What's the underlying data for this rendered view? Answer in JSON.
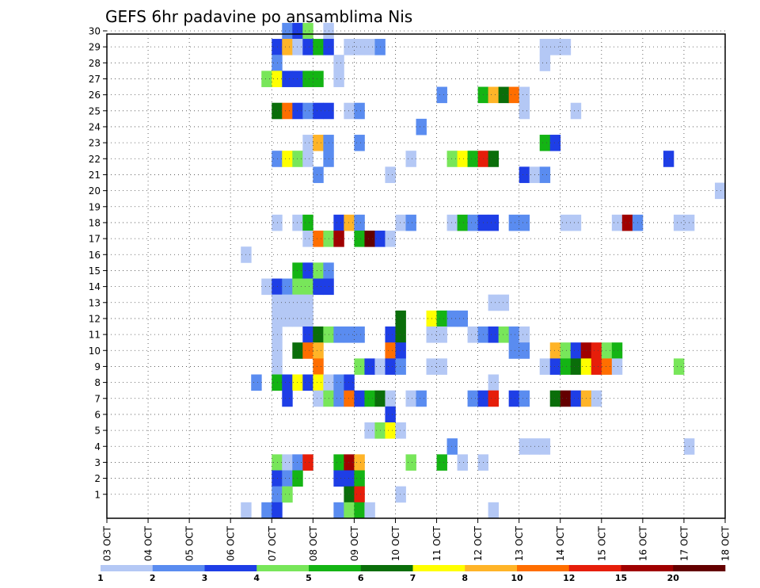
{
  "chart_data": {
    "type": "heatmap",
    "title": "GEFS 6hr padavine po ansamblima Nis",
    "x_ticks": [
      "03 OCT",
      "04 OCT",
      "05 OCT",
      "06 OCT",
      "07 OCT",
      "08 OCT",
      "09 OCT",
      "10 OCT",
      "11 OCT",
      "12 OCT",
      "13 OCT",
      "14 OCT",
      "15 OCT",
      "16 OCT",
      "17 OCT",
      "18 OCT"
    ],
    "x_range_days": [
      0,
      15
    ],
    "time_step_hours": 6,
    "y_members": [
      1,
      2,
      3,
      4,
      5,
      6,
      7,
      8,
      9,
      10,
      11,
      12,
      13,
      14,
      15,
      16,
      17,
      18,
      19,
      20,
      21,
      22,
      23,
      24,
      25,
      26,
      27,
      28,
      29,
      30
    ],
    "y_range": [
      0,
      30
    ],
    "grid": true,
    "legend": {
      "placement": "bottom",
      "labels": [
        "1",
        "2",
        "3",
        "4",
        "5",
        "6",
        "7",
        "8",
        "10",
        "12",
        "15",
        "20"
      ],
      "colors": [
        "#b4c8f5",
        "#5a8cf0",
        "#1e3ee6",
        "#78e65a",
        "#14b414",
        "#0a6e0a",
        "#ffff00",
        "#ffb428",
        "#ff6e00",
        "#e61e0a",
        "#a00000",
        "#640000"
      ]
    },
    "cells": [
      {
        "m": 30,
        "t": [
          [
            17,
            2
          ],
          [
            18,
            3
          ],
          [
            19,
            4
          ],
          [
            21,
            1
          ]
        ]
      },
      {
        "m": 29,
        "t": [
          [
            16,
            3
          ],
          [
            17,
            8
          ],
          [
            18,
            1
          ],
          [
            19,
            3
          ],
          [
            20,
            5
          ],
          [
            21,
            3
          ],
          [
            23,
            1
          ],
          [
            24,
            1
          ],
          [
            25,
            1
          ],
          [
            26,
            2
          ],
          [
            42,
            1
          ],
          [
            43,
            1
          ],
          [
            44,
            1
          ]
        ]
      },
      {
        "m": 28,
        "t": [
          [
            16,
            2
          ],
          [
            22,
            1
          ],
          [
            42,
            1
          ]
        ]
      },
      {
        "m": 27,
        "t": [
          [
            15,
            4
          ],
          [
            16,
            7
          ],
          [
            17,
            3
          ],
          [
            18,
            3
          ],
          [
            19,
            5
          ],
          [
            20,
            5
          ],
          [
            22,
            1
          ]
        ]
      },
      {
        "m": 26,
        "t": [
          [
            32,
            2
          ],
          [
            36,
            5
          ],
          [
            37,
            8
          ],
          [
            38,
            6
          ],
          [
            39,
            9
          ],
          [
            40,
            1
          ]
        ]
      },
      {
        "m": 25,
        "t": [
          [
            16,
            6
          ],
          [
            17,
            9
          ],
          [
            18,
            3
          ],
          [
            19,
            2
          ],
          [
            20,
            3
          ],
          [
            21,
            3
          ],
          [
            23,
            1
          ],
          [
            24,
            2
          ],
          [
            40,
            1
          ],
          [
            45,
            1
          ]
        ]
      },
      {
        "m": 24,
        "t": [
          [
            30,
            2
          ]
        ]
      },
      {
        "m": 23,
        "t": [
          [
            19,
            1
          ],
          [
            20,
            8
          ],
          [
            21,
            2
          ],
          [
            24,
            2
          ],
          [
            42,
            5
          ],
          [
            43,
            3
          ]
        ]
      },
      {
        "m": 22,
        "t": [
          [
            16,
            2
          ],
          [
            17,
            7
          ],
          [
            18,
            4
          ],
          [
            19,
            1
          ],
          [
            21,
            2
          ],
          [
            29,
            1
          ],
          [
            33,
            4
          ],
          [
            34,
            7
          ],
          [
            35,
            5
          ],
          [
            36,
            10
          ],
          [
            37,
            6
          ],
          [
            54,
            3
          ]
        ]
      },
      {
        "m": 21,
        "t": [
          [
            20,
            2
          ],
          [
            27,
            1
          ],
          [
            40,
            3
          ],
          [
            41,
            1
          ],
          [
            42,
            2
          ]
        ]
      },
      {
        "m": 20,
        "t": [
          [
            59,
            1
          ]
        ]
      },
      {
        "m": 18,
        "t": [
          [
            16,
            1
          ],
          [
            18,
            1
          ],
          [
            19,
            5
          ],
          [
            22,
            3
          ],
          [
            23,
            8
          ],
          [
            24,
            2
          ],
          [
            28,
            1
          ],
          [
            29,
            2
          ],
          [
            33,
            1
          ],
          [
            34,
            5
          ],
          [
            35,
            2
          ],
          [
            36,
            3
          ],
          [
            37,
            3
          ],
          [
            39,
            2
          ],
          [
            40,
            2
          ],
          [
            44,
            1
          ],
          [
            45,
            1
          ],
          [
            49,
            1
          ],
          [
            50,
            11
          ],
          [
            51,
            2
          ],
          [
            55,
            1
          ],
          [
            56,
            1
          ]
        ]
      },
      {
        "m": 17,
        "t": [
          [
            19,
            1
          ],
          [
            20,
            9
          ],
          [
            21,
            4
          ],
          [
            22,
            11
          ],
          [
            24,
            5
          ],
          [
            25,
            12
          ],
          [
            26,
            3
          ],
          [
            27,
            1
          ]
        ]
      },
      {
        "m": 16,
        "t": [
          [
            13,
            1
          ]
        ]
      },
      {
        "m": 15,
        "t": [
          [
            18,
            5
          ],
          [
            19,
            3
          ],
          [
            20,
            4
          ],
          [
            21,
            2
          ]
        ]
      },
      {
        "m": 14,
        "t": [
          [
            15,
            1
          ],
          [
            16,
            3
          ],
          [
            17,
            2
          ],
          [
            18,
            4
          ],
          [
            19,
            4
          ],
          [
            20,
            3
          ],
          [
            21,
            3
          ]
        ]
      },
      {
        "m": 13,
        "t": [
          [
            16,
            1
          ],
          [
            17,
            1
          ],
          [
            18,
            1
          ],
          [
            19,
            1
          ],
          [
            37,
            1
          ],
          [
            38,
            1
          ]
        ]
      },
      {
        "m": 12,
        "t": [
          [
            16,
            1
          ],
          [
            17,
            1
          ],
          [
            18,
            1
          ],
          [
            19,
            1
          ],
          [
            28,
            6
          ],
          [
            31,
            7
          ],
          [
            32,
            5
          ],
          [
            33,
            2
          ],
          [
            34,
            2
          ]
        ]
      },
      {
        "m": 11,
        "t": [
          [
            16,
            1
          ],
          [
            19,
            3
          ],
          [
            20,
            6
          ],
          [
            21,
            4
          ],
          [
            22,
            2
          ],
          [
            23,
            2
          ],
          [
            24,
            2
          ],
          [
            27,
            3
          ],
          [
            28,
            6
          ],
          [
            31,
            1
          ],
          [
            32,
            1
          ],
          [
            35,
            1
          ],
          [
            36,
            2
          ],
          [
            37,
            3
          ],
          [
            38,
            4
          ],
          [
            39,
            2
          ],
          [
            40,
            1
          ]
        ]
      },
      {
        "m": 10,
        "t": [
          [
            16,
            1
          ],
          [
            18,
            6
          ],
          [
            19,
            9
          ],
          [
            20,
            8
          ],
          [
            27,
            9
          ],
          [
            28,
            3
          ],
          [
            39,
            2
          ],
          [
            40,
            2
          ],
          [
            43,
            8
          ],
          [
            44,
            4
          ],
          [
            45,
            3
          ],
          [
            46,
            11
          ],
          [
            47,
            10
          ],
          [
            48,
            4
          ],
          [
            49,
            5
          ]
        ]
      },
      {
        "m": 9,
        "t": [
          [
            16,
            1
          ],
          [
            20,
            9
          ],
          [
            24,
            4
          ],
          [
            25,
            3
          ],
          [
            26,
            1
          ],
          [
            27,
            3
          ],
          [
            28,
            2
          ],
          [
            31,
            1
          ],
          [
            32,
            1
          ],
          [
            42,
            1
          ],
          [
            43,
            3
          ],
          [
            44,
            5
          ],
          [
            45,
            6
          ],
          [
            46,
            7
          ],
          [
            47,
            10
          ],
          [
            48,
            9
          ],
          [
            49,
            1
          ],
          [
            55,
            4
          ]
        ]
      },
      {
        "m": 8,
        "t": [
          [
            14,
            2
          ],
          [
            16,
            5
          ],
          [
            17,
            3
          ],
          [
            18,
            7
          ],
          [
            19,
            3
          ],
          [
            20,
            7
          ],
          [
            21,
            1
          ],
          [
            22,
            2
          ],
          [
            23,
            3
          ],
          [
            37,
            1
          ]
        ]
      },
      {
        "m": 7,
        "t": [
          [
            17,
            3
          ],
          [
            20,
            1
          ],
          [
            21,
            4
          ],
          [
            22,
            2
          ],
          [
            23,
            9
          ],
          [
            24,
            3
          ],
          [
            25,
            5
          ],
          [
            26,
            6
          ],
          [
            27,
            1
          ],
          [
            29,
            1
          ],
          [
            30,
            2
          ],
          [
            35,
            2
          ],
          [
            36,
            3
          ],
          [
            37,
            10
          ],
          [
            39,
            3
          ],
          [
            40,
            2
          ],
          [
            43,
            6
          ],
          [
            44,
            12
          ],
          [
            45,
            3
          ],
          [
            46,
            8
          ],
          [
            47,
            1
          ]
        ]
      },
      {
        "m": 6,
        "t": [
          [
            27,
            3
          ]
        ]
      },
      {
        "m": 5,
        "t": [
          [
            25,
            1
          ],
          [
            26,
            4
          ],
          [
            27,
            7
          ],
          [
            28,
            1
          ]
        ]
      },
      {
        "m": 4,
        "t": [
          [
            33,
            2
          ],
          [
            40,
            1
          ],
          [
            41,
            1
          ],
          [
            42,
            1
          ],
          [
            56,
            1
          ]
        ]
      },
      {
        "m": 3,
        "t": [
          [
            16,
            4
          ],
          [
            17,
            1
          ],
          [
            18,
            2
          ],
          [
            19,
            10
          ],
          [
            22,
            5
          ],
          [
            23,
            11
          ],
          [
            24,
            8
          ],
          [
            29,
            4
          ],
          [
            32,
            5
          ],
          [
            34,
            1
          ],
          [
            36,
            1
          ]
        ]
      },
      {
        "m": 2,
        "t": [
          [
            16,
            3
          ],
          [
            17,
            2
          ],
          [
            18,
            5
          ],
          [
            22,
            3
          ],
          [
            23,
            3
          ],
          [
            24,
            5
          ]
        ]
      },
      {
        "m": 1,
        "t": [
          [
            16,
            2
          ],
          [
            17,
            4
          ],
          [
            23,
            6
          ],
          [
            24,
            10
          ],
          [
            28,
            1
          ]
        ]
      },
      {
        "m": 0,
        "t": [
          [
            13,
            1
          ],
          [
            15,
            2
          ],
          [
            16,
            3
          ],
          [
            22,
            2
          ],
          [
            23,
            4
          ],
          [
            24,
            5
          ],
          [
            25,
            1
          ],
          [
            37,
            1
          ]
        ]
      }
    ]
  }
}
